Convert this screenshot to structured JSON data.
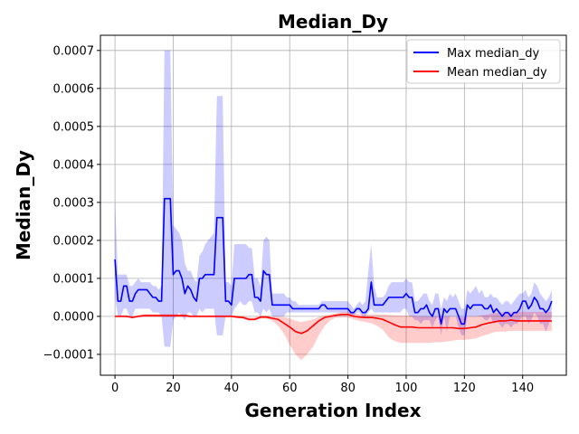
{
  "chart_data": {
    "type": "line",
    "title": "Median_Dy",
    "xlabel": "Generation Index",
    "ylabel": "Median_Dy",
    "xlim": [
      -5,
      155
    ],
    "ylim": [
      -0.000155,
      0.00074
    ],
    "xticks": [
      0,
      20,
      40,
      60,
      80,
      100,
      120,
      140
    ],
    "yticks": [
      -0.0001,
      0.0,
      0.0001,
      0.0002,
      0.0003,
      0.0004,
      0.0005,
      0.0006,
      0.0007
    ],
    "ytick_labels": [
      "−0.0001",
      "0.0000",
      "0.0001",
      "0.0002",
      "0.0003",
      "0.0004",
      "0.0005",
      "0.0006",
      "0.0007"
    ],
    "grid": true,
    "legend_position": "top-right",
    "series": [
      {
        "name": "Max median_dy",
        "color": "#0000ff",
        "band_color": "#0000ff",
        "x": [
          0,
          1,
          2,
          3,
          4,
          5,
          6,
          7,
          8,
          9,
          10,
          11,
          12,
          13,
          14,
          15,
          16,
          17,
          18,
          19,
          20,
          21,
          22,
          23,
          24,
          25,
          26,
          27,
          28,
          29,
          30,
          31,
          32,
          33,
          34,
          35,
          36,
          37,
          38,
          39,
          40,
          41,
          42,
          43,
          44,
          45,
          46,
          47,
          48,
          49,
          50,
          51,
          52,
          53,
          54,
          55,
          56,
          57,
          58,
          59,
          60,
          61,
          62,
          63,
          64,
          65,
          66,
          67,
          68,
          69,
          70,
          71,
          72,
          73,
          74,
          75,
          76,
          77,
          78,
          79,
          80,
          81,
          82,
          83,
          84,
          85,
          86,
          87,
          88,
          89,
          90,
          91,
          92,
          93,
          94,
          95,
          96,
          97,
          98,
          99,
          100,
          101,
          102,
          103,
          104,
          105,
          106,
          107,
          108,
          109,
          110,
          111,
          112,
          113,
          114,
          115,
          116,
          117,
          118,
          119,
          120,
          121,
          122,
          123,
          124,
          125,
          126,
          127,
          128,
          129,
          130,
          131,
          132,
          133,
          134,
          135,
          136,
          137,
          138,
          139,
          140,
          141,
          142,
          143,
          144,
          145,
          146,
          147,
          148,
          149,
          150
        ],
        "y": [
          0.00015,
          4e-05,
          4e-05,
          8e-05,
          8e-05,
          4e-05,
          4e-05,
          6e-05,
          7e-05,
          7e-05,
          7e-05,
          7e-05,
          6e-05,
          5e-05,
          5e-05,
          4e-05,
          4e-05,
          0.00031,
          0.00031,
          0.00031,
          0.00011,
          0.00012,
          0.00012,
          0.0001,
          6e-05,
          8e-05,
          7e-05,
          5e-05,
          4e-05,
          0.0001,
          0.0001,
          0.00011,
          0.00011,
          0.00011,
          0.00011,
          0.00026,
          0.00026,
          0.00026,
          4e-05,
          4e-05,
          3e-05,
          0.0001,
          0.0001,
          0.0001,
          0.0001,
          0.0001,
          0.00011,
          0.00011,
          5e-05,
          5e-05,
          4e-05,
          0.00012,
          0.00011,
          0.00011,
          3e-05,
          3e-05,
          3e-05,
          3e-05,
          3e-05,
          3e-05,
          3e-05,
          2e-05,
          2e-05,
          2e-05,
          2e-05,
          2e-05,
          2e-05,
          2e-05,
          2e-05,
          2e-05,
          2e-05,
          3e-05,
          3e-05,
          2e-05,
          2e-05,
          2e-05,
          2e-05,
          2e-05,
          2e-05,
          2e-05,
          2e-05,
          1e-05,
          1e-05,
          2e-05,
          2e-05,
          1e-05,
          1e-05,
          2e-05,
          9e-05,
          3e-05,
          3e-05,
          3e-05,
          3e-05,
          4e-05,
          5e-05,
          5e-05,
          5e-05,
          5e-05,
          5e-05,
          5e-05,
          6e-05,
          5e-05,
          5e-05,
          1e-05,
          1e-05,
          2e-05,
          2e-05,
          3e-05,
          1e-05,
          0.0,
          2e-05,
          2e-05,
          -2e-05,
          2e-05,
          1e-05,
          2e-05,
          2e-05,
          2e-05,
          0.0,
          -2e-05,
          -2e-05,
          3e-05,
          2e-05,
          3e-05,
          3e-05,
          3e-05,
          3e-05,
          2e-05,
          2e-05,
          3e-05,
          1e-05,
          2e-05,
          1e-05,
          0.0,
          1e-05,
          1e-05,
          0.0,
          1e-05,
          1e-05,
          2e-05,
          4e-05,
          4e-05,
          2e-05,
          3e-05,
          5e-05,
          4e-05,
          2e-05,
          2e-05,
          1e-05,
          2e-05,
          4e-05
        ],
        "lower": [
          5e-05,
          0.0,
          0.0,
          2e-05,
          2e-05,
          0.0,
          0.0,
          2e-05,
          2e-05,
          2e-05,
          2e-05,
          2e-05,
          2e-05,
          1e-05,
          1e-05,
          1e-05,
          0.0,
          -8e-05,
          -8e-05,
          -8e-05,
          -1e-05,
          0.0,
          1e-05,
          0.0,
          -1e-05,
          1e-05,
          1e-05,
          0.0,
          0.0,
          2e-05,
          1e-05,
          2e-05,
          2e-05,
          2e-05,
          2e-05,
          -5e-05,
          -5e-05,
          -5e-05,
          0.0,
          0.0,
          0.0,
          2e-05,
          3e-05,
          4e-05,
          3e-05,
          3e-05,
          4e-05,
          4e-05,
          1e-05,
          1e-05,
          0.0,
          2e-05,
          1e-05,
          2e-05,
          0.0,
          0.0,
          0.0,
          0.0,
          0.0,
          1e-05,
          1e-05,
          1e-05,
          1e-05,
          1e-05,
          1e-05,
          1e-05,
          1e-05,
          1e-05,
          1e-05,
          1e-05,
          1e-05,
          1e-05,
          1e-05,
          1e-05,
          1e-05,
          1e-05,
          1e-05,
          1e-05,
          1e-05,
          1e-05,
          1e-05,
          0.0,
          0.0,
          1e-05,
          1e-05,
          0.0,
          0.0,
          1e-05,
          2e-05,
          1e-05,
          1e-05,
          1e-05,
          1e-05,
          1e-05,
          1e-05,
          1e-05,
          1e-05,
          1e-05,
          1e-05,
          2e-05,
          2e-05,
          0.0,
          0.0,
          -1e-05,
          -1e-05,
          -2e-05,
          -1e-05,
          -1e-05,
          -1e-05,
          -3e-05,
          -1e-05,
          0.0,
          -5e-05,
          0.0,
          -4e-05,
          0.0,
          0.0,
          0.0,
          -3e-05,
          -5e-05,
          -5e-05,
          0.0,
          0.0,
          0.0,
          0.0,
          0.0,
          0.0,
          -1e-05,
          -1e-05,
          0.0,
          -2e-05,
          -1e-05,
          -2e-05,
          -3e-05,
          -2e-05,
          -2e-05,
          -3e-05,
          -2e-05,
          -2e-05,
          -1e-05,
          0.0,
          0.0,
          -2e-05,
          -1e-05,
          1e-05,
          0.0,
          -2e-05,
          -2e-05,
          -4e-05,
          -2e-05,
          0.0
        ],
        "upper": [
          0.00031,
          0.00011,
          0.00011,
          0.00011,
          0.00011,
          8e-05,
          8e-05,
          9e-05,
          0.0001,
          9e-05,
          9e-05,
          9e-05,
          9e-05,
          8e-05,
          8e-05,
          7e-05,
          8e-05,
          0.0007,
          0.0007,
          0.0007,
          0.00024,
          0.00023,
          0.00022,
          0.0002,
          0.00014,
          0.00012,
          0.00012,
          0.0001,
          9e-05,
          0.00016,
          0.00017,
          0.00019,
          0.0002,
          0.00021,
          0.00022,
          0.00058,
          0.00058,
          0.00058,
          9e-05,
          9e-05,
          8e-05,
          0.00019,
          0.00019,
          0.00019,
          0.00019,
          0.00019,
          0.00018,
          0.00018,
          0.0001,
          0.0001,
          8e-05,
          0.0002,
          0.00021,
          0.0002,
          6e-05,
          6e-05,
          6e-05,
          6e-05,
          6e-05,
          5e-05,
          5e-05,
          4e-05,
          4e-05,
          3e-05,
          3e-05,
          3e-05,
          3e-05,
          3e-05,
          3e-05,
          3e-05,
          3e-05,
          4e-05,
          4e-05,
          4e-05,
          4e-05,
          4e-05,
          4e-05,
          4e-05,
          4e-05,
          4e-05,
          4e-05,
          3e-05,
          2e-05,
          3e-05,
          4e-05,
          3e-05,
          4e-05,
          0.00012,
          0.00019,
          8e-05,
          5e-05,
          5e-05,
          5e-05,
          6e-05,
          8e-05,
          9e-05,
          9e-05,
          9e-05,
          9e-05,
          9e-05,
          0.0001,
          9e-05,
          9e-05,
          4e-05,
          4e-05,
          5e-05,
          6e-05,
          6e-05,
          4e-05,
          3e-05,
          6e-05,
          6e-05,
          2e-05,
          5e-05,
          4e-05,
          6e-05,
          5e-05,
          6e-05,
          4e-05,
          2e-05,
          2e-05,
          7e-05,
          6e-05,
          7e-05,
          8e-05,
          6e-05,
          7e-05,
          5e-05,
          5e-05,
          6e-05,
          5e-05,
          5e-05,
          4e-05,
          3e-05,
          4e-05,
          4e-05,
          3e-05,
          4e-05,
          5e-05,
          6e-05,
          6e-05,
          7e-05,
          5e-05,
          6e-05,
          9e-05,
          8e-05,
          6e-05,
          5e-05,
          4e-05,
          5e-05,
          7e-05
        ]
      },
      {
        "name": "Mean median_dy",
        "color": "#ff0000",
        "band_color": "#ff0000",
        "x": [
          0,
          2,
          4,
          6,
          8,
          10,
          12,
          14,
          16,
          18,
          20,
          22,
          24,
          26,
          28,
          30,
          32,
          34,
          36,
          38,
          40,
          42,
          44,
          46,
          48,
          50,
          52,
          54,
          56,
          58,
          60,
          62,
          64,
          66,
          68,
          70,
          72,
          74,
          76,
          78,
          80,
          82,
          84,
          86,
          88,
          90,
          92,
          94,
          96,
          98,
          100,
          102,
          104,
          106,
          108,
          110,
          112,
          114,
          116,
          118,
          120,
          122,
          124,
          126,
          128,
          130,
          132,
          134,
          136,
          138,
          140,
          142,
          144,
          146,
          148,
          150
        ],
        "y": [
          0.0,
          0.0,
          0.0,
          -3e-06,
          0.0,
          2e-06,
          2e-06,
          2e-06,
          2e-06,
          2e-06,
          2e-06,
          2e-06,
          2e-06,
          0.0,
          0.0,
          0.0,
          0.0,
          0.0,
          0.0,
          0.0,
          0.0,
          -2e-06,
          -3e-06,
          -8e-06,
          -8e-06,
          -2e-06,
          -2e-06,
          -5e-06,
          -8e-06,
          -1.8e-05,
          -2.8e-05,
          -4e-05,
          -4.5e-05,
          -3.8e-05,
          -2.5e-05,
          -1.2e-05,
          -3e-06,
          0.0,
          3e-06,
          5e-06,
          5e-06,
          0.0,
          -2e-06,
          -3e-06,
          -3e-06,
          -5e-06,
          -8e-06,
          -1.5e-05,
          -2.2e-05,
          -2.8e-05,
          -2.8e-05,
          -2.8e-05,
          -3e-05,
          -3e-05,
          -3e-05,
          -3e-05,
          -3e-05,
          -3e-05,
          -3e-05,
          -3.2e-05,
          -3.2e-05,
          -3e-05,
          -2.8e-05,
          -2.2e-05,
          -1.8e-05,
          -1.5e-05,
          -1.2e-05,
          -1.2e-05,
          -1e-05,
          -1.2e-05,
          -1.2e-05,
          -1.2e-05,
          -1.2e-05,
          -1.2e-05,
          -1.2e-05,
          -1.2e-05
        ],
        "lower": [
          -3e-06,
          -3e-06,
          -3e-06,
          -5e-06,
          -3e-06,
          -2e-06,
          -2e-06,
          -2e-06,
          -2e-06,
          -2e-06,
          -2e-06,
          -2e-06,
          -2e-06,
          -3e-06,
          -3e-06,
          -3e-06,
          -3e-06,
          -3e-06,
          -3e-06,
          -3e-06,
          -3e-06,
          -5e-06,
          -6e-06,
          -1.2e-05,
          -1.2e-05,
          -6e-06,
          -6e-06,
          -1.2e-05,
          -2.5e-05,
          -4.5e-05,
          -7.5e-05,
          -0.0001,
          -0.000115,
          -0.0001,
          -8e-05,
          -5e-05,
          -2.5e-05,
          -1e-05,
          -3e-06,
          -2e-06,
          -3e-06,
          -8e-06,
          -1.2e-05,
          -1.5e-05,
          -1.8e-05,
          -2.5e-05,
          -3.5e-05,
          -5.5e-05,
          -6.5e-05,
          -7e-05,
          -7e-05,
          -7e-05,
          -7e-05,
          -7e-05,
          -7e-05,
          -6.8e-05,
          -6.8e-05,
          -6.6e-05,
          -6.4e-05,
          -6.2e-05,
          -6.2e-05,
          -6e-05,
          -5.8e-05,
          -5.2e-05,
          -4.8e-05,
          -4.2e-05,
          -4e-05,
          -4e-05,
          -3.8e-05,
          -3.8e-05,
          -3.8e-05,
          -3.8e-05,
          -3.8e-05,
          -3.8e-05,
          -3.8e-05,
          -3.8e-05
        ],
        "upper": [
          3e-06,
          3e-06,
          3e-06,
          0.0,
          3e-06,
          6e-06,
          6e-06,
          6e-06,
          6e-06,
          6e-06,
          6e-06,
          6e-06,
          6e-06,
          3e-06,
          3e-06,
          3e-06,
          3e-06,
          3e-06,
          3e-06,
          3e-06,
          3e-06,
          2e-06,
          1e-06,
          -3e-06,
          -3e-06,
          2e-06,
          2e-06,
          0.0,
          0.0,
          -2e-06,
          -5e-06,
          -1.2e-05,
          -1.5e-05,
          -1.2e-05,
          -8e-06,
          -2e-06,
          3e-06,
          5e-06,
          8e-06,
          1.2e-05,
          1.2e-05,
          8e-06,
          6e-06,
          5e-06,
          5e-06,
          5e-06,
          5e-06,
          4e-06,
          3e-06,
          2e-06,
          2e-06,
          2e-06,
          0.0,
          0.0,
          0.0,
          0.0,
          0.0,
          0.0,
          0.0,
          -2e-06,
          -2e-06,
          0.0,
          0.0,
          3e-06,
          5e-06,
          8e-06,
          1e-05,
          1e-05,
          1e-05,
          1.2e-05,
          1.2e-05,
          1.2e-05,
          1.2e-05,
          1.2e-05,
          1.2e-05,
          1.2e-05
        ]
      }
    ]
  }
}
